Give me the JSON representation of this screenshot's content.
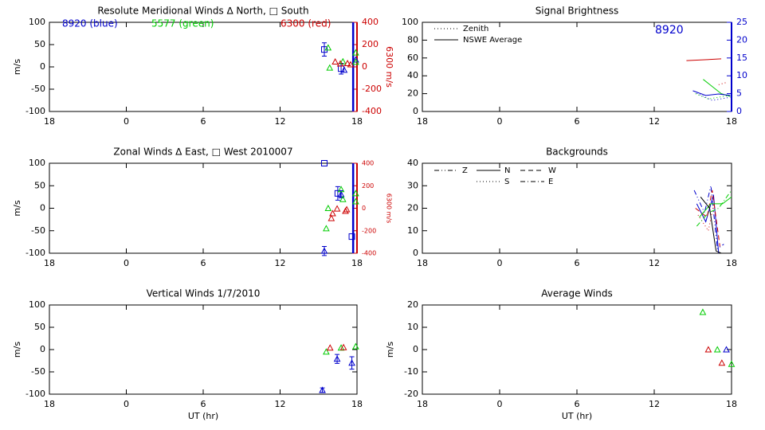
{
  "chart_data": [
    {
      "type": "scatter",
      "title": "Resolute Meridional Winds ∆ North, □ South",
      "xlim": [
        -6,
        18
      ],
      "xticks": [
        {
          "value": -6,
          "label": "18"
        },
        0,
        6,
        12,
        18
      ],
      "ylim": [
        -100,
        100
      ],
      "yticks": [
        -100,
        -50,
        0,
        50,
        100
      ],
      "ylabel": "m/s",
      "y2lim": [
        -400,
        400
      ],
      "y2ticks": [
        -400,
        -200,
        0,
        200,
        400
      ],
      "y2label": "6300 m/s",
      "y2color": "#cc0000",
      "annotations": [
        {
          "text": "8920 (blue)",
          "color": "#0000cc"
        },
        {
          "text": "5577 (green)",
          "color": "#00cc00"
        },
        {
          "text": "6300 (red)",
          "color": "#cc0000"
        }
      ],
      "reference_lines": [
        {
          "x": 17.7,
          "color": "#0000cc"
        }
      ],
      "series": [
        {
          "color": "#0000cc",
          "marker": "square",
          "x": [
            15.45,
            16.76
          ],
          "values": [
            39,
            -4
          ],
          "errors": [
            15,
            12
          ]
        },
        {
          "color": "#0000cc",
          "marker": "triangle",
          "x": [
            17.0,
            17.9
          ],
          "values": [
            -7,
            16
          ]
        },
        {
          "color": "#00cc00",
          "marker": "triangle",
          "x": [
            15.75,
            15.87,
            16.9,
            17.9,
            17.9
          ],
          "values": [
            43,
            -2,
            12,
            32,
            11
          ]
        },
        {
          "color": "#cc0000",
          "marker": "triangle",
          "axis": "y2",
          "x": [
            16.3,
            16.7,
            17.26,
            17.5
          ],
          "values": [
            46,
            29,
            32,
            21
          ]
        }
      ]
    },
    {
      "type": "line",
      "title": "Signal Brightness",
      "xlim": [
        -6,
        18
      ],
      "xticks": [
        {
          "value": -6,
          "label": "18"
        },
        0,
        6,
        12,
        18
      ],
      "ylim": [
        0,
        100
      ],
      "yticks": [
        0,
        20,
        40,
        60,
        80,
        100
      ],
      "y2lim": [
        0,
        25
      ],
      "y2ticks": [
        0,
        5,
        10,
        15,
        20,
        25
      ],
      "y2color": "#0000cc",
      "annotations": [
        {
          "text": "8920",
          "color": "#0000cc"
        }
      ],
      "legend": [
        {
          "label": "Zenith",
          "dash": "dotted"
        },
        {
          "label": "NSWE Average",
          "dash": "solid"
        }
      ],
      "series": [
        {
          "color": "#cc0000",
          "dash": "solid",
          "x": [
            14.5,
            17.2
          ],
          "values": [
            57,
            59
          ]
        },
        {
          "color": "#cc0000",
          "dash": "dotted",
          "x": [
            17.0,
            17.7
          ],
          "values": [
            30,
            33
          ]
        },
        {
          "color": "#00cc00",
          "dash": "solid",
          "x": [
            15.8,
            17.2,
            17.9
          ],
          "values": [
            36,
            20,
            17
          ]
        },
        {
          "color": "#00cc00",
          "dash": "dotted",
          "x": [
            15.2,
            16.2,
            17.8
          ],
          "values": [
            20,
            14,
            18
          ]
        },
        {
          "color": "#0000cc",
          "dash": "solid",
          "axis": "y2",
          "x": [
            15.0,
            16.0,
            17.0,
            17.9
          ],
          "values": [
            5.8,
            4.5,
            4.9,
            4.5
          ]
        },
        {
          "color": "#0000cc",
          "dash": "dotted",
          "axis": "y2",
          "x": [
            15.3,
            16.5,
            17.9
          ],
          "values": [
            5.1,
            3.1,
            4.0
          ]
        }
      ]
    },
    {
      "type": "scatter",
      "title": "Zonal Winds ∆ East, □ West 2010007",
      "xlim": [
        -6,
        18
      ],
      "xticks": [
        {
          "value": -6,
          "label": "18"
        },
        0,
        6,
        12,
        18
      ],
      "ylim": [
        -100,
        100
      ],
      "yticks": [
        -100,
        -50,
        0,
        50,
        100
      ],
      "ylabel": "m/s",
      "y2lim": [
        -400,
        400
      ],
      "y2ticks": [
        -400,
        -200,
        0,
        200,
        400
      ],
      "y2label": "6300 m/s",
      "y2color": "#cc0000",
      "reference_lines": [
        {
          "x": 17.7,
          "color": "#0000cc"
        }
      ],
      "series": [
        {
          "color": "#0000cc",
          "marker": "square",
          "x": [
            15.45,
            16.5,
            17.6
          ],
          "values": [
            100,
            33,
            -63
          ],
          "errors": [
            0,
            15,
            0
          ]
        },
        {
          "color": "#0000cc",
          "marker": "triangle",
          "x": [
            15.45,
            16.76
          ],
          "values": [
            -95,
            31
          ],
          "errors": [
            10,
            8
          ]
        },
        {
          "color": "#00cc00",
          "marker": "triangle",
          "x": [
            15.75,
            15.6,
            16.76,
            16.9,
            17.9,
            17.9
          ],
          "values": [
            0,
            -45,
            42,
            20,
            33,
            15
          ]
        },
        {
          "color": "#cc0000",
          "marker": "triangle",
          "axis": "y2",
          "x": [
            16.0,
            16.1,
            16.45,
            17.1,
            17.2
          ],
          "values": [
            -89,
            -46,
            -4,
            -25,
            -11
          ]
        }
      ]
    },
    {
      "type": "line",
      "title": "Backgrounds",
      "xlim": [
        -6,
        18
      ],
      "xticks": [
        {
          "value": -6,
          "label": "18"
        },
        0,
        6,
        12,
        18
      ],
      "ylim": [
        0,
        40
      ],
      "yticks": [
        0,
        10,
        20,
        30,
        40
      ],
      "legend": [
        {
          "label": "Z",
          "dash": "dashdotdot"
        },
        {
          "label": "N",
          "dash": "solid"
        },
        {
          "label": "W",
          "dash": "dashed"
        },
        {
          "label": "S",
          "dash": "dotted"
        },
        {
          "label": "E",
          "dash": "dashdot"
        }
      ],
      "series": [
        {
          "color": "#0000cc",
          "dash": "dashdotdot",
          "x": [
            15.1,
            15.9,
            16.4,
            16.9,
            17.4
          ],
          "values": [
            28,
            18,
            30,
            2,
            4
          ]
        },
        {
          "color": "#0000cc",
          "dash": "solid",
          "x": [
            15.3,
            16.0,
            16.6,
            17.0
          ],
          "values": [
            22,
            14,
            26,
            0
          ]
        },
        {
          "color": "#cc0000",
          "dash": "dashed",
          "x": [
            15.2,
            16.1,
            16.5,
            17.1
          ],
          "values": [
            20,
            16,
            28,
            3
          ]
        },
        {
          "color": "#cc0000",
          "dash": "dotted",
          "x": [
            15.4,
            16.2,
            16.7
          ],
          "values": [
            17,
            10,
            24
          ]
        },
        {
          "color": "#00cc00",
          "dash": "dashdot",
          "x": [
            15.3,
            16.2,
            17.0,
            18.0
          ],
          "values": [
            12,
            18,
            20,
            28
          ]
        },
        {
          "color": "#00cc00",
          "dash": "solid",
          "x": [
            15.5,
            16.4,
            17.3,
            18.0
          ],
          "values": [
            16,
            22,
            22,
            25
          ]
        },
        {
          "color": "#000000",
          "dash": "solid",
          "x": [
            15.6,
            16.3,
            16.8,
            17.2
          ],
          "values": [
            25,
            20,
            1,
            0
          ]
        }
      ]
    },
    {
      "type": "scatter",
      "title": "Vertical Winds 1/7/2010",
      "xlabel": "UT (hr)",
      "xlim": [
        -6,
        18
      ],
      "xticks": [
        {
          "value": -6,
          "label": "18"
        },
        0,
        6,
        12,
        18
      ],
      "ylim": [
        -100,
        100
      ],
      "yticks": [
        -100,
        -50,
        0,
        50,
        100
      ],
      "ylabel": "m/s",
      "series": [
        {
          "color": "#0000cc",
          "marker": "triangle",
          "x": [
            15.3,
            16.45,
            17.6
          ],
          "values": [
            -91,
            -21,
            -30
          ],
          "errors": [
            5,
            10,
            14
          ]
        },
        {
          "color": "#00cc00",
          "marker": "triangle",
          "x": [
            15.6,
            16.76,
            17.9
          ],
          "values": [
            -5,
            4,
            7
          ]
        },
        {
          "color": "#cc0000",
          "marker": "triangle",
          "x": [
            15.9,
            16.95
          ],
          "values": [
            4,
            5
          ]
        }
      ]
    },
    {
      "type": "scatter",
      "title": "Average Winds",
      "xlabel": "UT (hr)",
      "xlim": [
        -6,
        18
      ],
      "xticks": [
        {
          "value": -6,
          "label": "18"
        },
        0,
        6,
        12,
        18
      ],
      "ylim": [
        -20,
        20
      ],
      "yticks": [
        -20,
        -10,
        0,
        10,
        20
      ],
      "ylabel": "m/s",
      "series": [
        {
          "color": "#00cc00",
          "marker": "triangle",
          "x": [
            15.77,
            16.9,
            18.0
          ],
          "values": [
            16.8,
            0,
            -6.5
          ]
        },
        {
          "color": "#cc0000",
          "marker": "triangle",
          "x": [
            16.2,
            17.25
          ],
          "values": [
            0,
            -6
          ]
        },
        {
          "color": "#0000cc",
          "marker": "triangle",
          "x": [
            17.6
          ],
          "values": [
            0
          ]
        }
      ]
    }
  ]
}
